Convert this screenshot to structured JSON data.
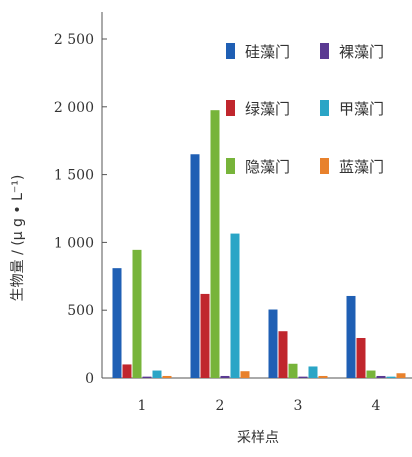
{
  "chart_data": {
    "type": "bar",
    "categories": [
      "1",
      "2",
      "3",
      "4"
    ],
    "xlabel": "采样点",
    "ylabel": "生物量 / (μ g • L⁻¹)",
    "ylim": [
      0,
      2500
    ],
    "yticks": [
      0,
      500,
      1000,
      1500,
      2000,
      2500
    ],
    "ytick_labels": [
      "0",
      "500",
      "1 000",
      "1 500",
      "2 000",
      "2 500"
    ],
    "grid": false,
    "legend_position": "top-right",
    "series": [
      {
        "name": "硅藻门",
        "color": "#1f5fb4",
        "values": [
          810,
          1650,
          505,
          605
        ]
      },
      {
        "name": "绿藻门",
        "color": "#c0262d",
        "values": [
          100,
          620,
          345,
          295
        ]
      },
      {
        "name": "隐藻门",
        "color": "#77b43a",
        "values": [
          945,
          1975,
          105,
          55
        ]
      },
      {
        "name": "裸藻门",
        "color": "#5a3a92",
        "values": [
          10,
          15,
          10,
          15
        ]
      },
      {
        "name": "甲藻门",
        "color": "#2aa5c6",
        "values": [
          55,
          1065,
          85,
          10
        ]
      },
      {
        "name": "蓝藻门",
        "color": "#e8812c",
        "values": [
          15,
          50,
          15,
          35
        ]
      }
    ]
  }
}
